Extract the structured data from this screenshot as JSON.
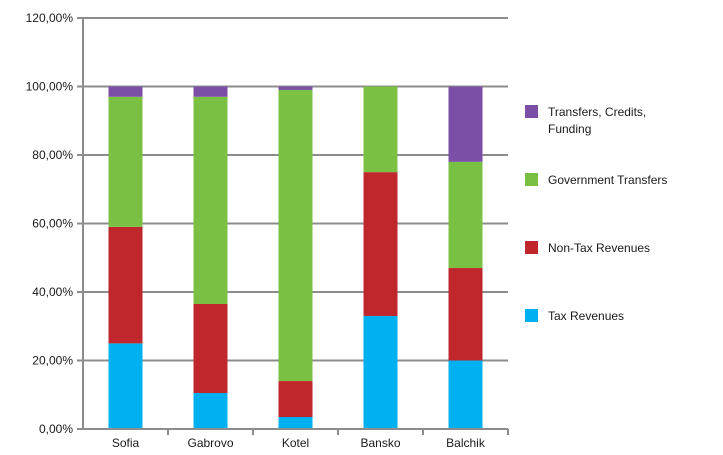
{
  "chart_data": {
    "type": "bar",
    "stacked": true,
    "categories": [
      "Sofia",
      "Gabrovo",
      "Kotel",
      "Bansko",
      "Balchik"
    ],
    "series": [
      {
        "name": "Tax Revenues",
        "color": "#00b0f0",
        "values": [
          25.0,
          10.5,
          3.5,
          33.0,
          20.0
        ]
      },
      {
        "name": "Non-Tax Revenues",
        "color": "#c0272d",
        "values": [
          34.0,
          26.0,
          10.5,
          42.0,
          27.0
        ]
      },
      {
        "name": "Government Transfers",
        "color": "#7ac143",
        "values": [
          38.0,
          60.5,
          85.0,
          25.0,
          31.0
        ]
      },
      {
        "name": "Transfers, Credits, Funding",
        "color": "#7b4fa6",
        "values": [
          3.0,
          3.0,
          1.0,
          0.0,
          22.0
        ]
      }
    ],
    "legend_order": [
      3,
      2,
      1,
      0
    ],
    "legend_lines": [
      [
        "Transfers, Credits,",
        "Funding"
      ],
      [
        "Government Transfers"
      ],
      [
        "Non-Tax Revenues"
      ],
      [
        "Tax Revenues"
      ]
    ],
    "y_ticks": [
      "0,00%",
      "20,00%",
      "40,00%",
      "60,00%",
      "80,00%",
      "100,00%",
      "120,00%"
    ],
    "ylim": [
      0,
      120
    ],
    "grid": true,
    "legend_position": "right",
    "title": "",
    "xlabel": "",
    "ylabel": ""
  }
}
